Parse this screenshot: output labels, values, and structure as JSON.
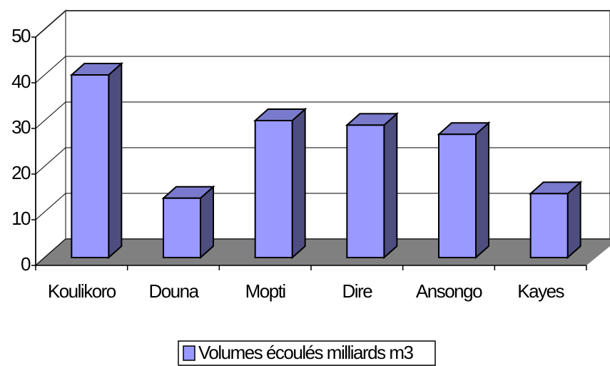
{
  "chart_data": {
    "type": "bar3d",
    "categories": [
      "Koulikoro",
      "Douna",
      "Mopti",
      "Dire",
      "Ansongo",
      "Kayes"
    ],
    "series": [
      {
        "name": "Volumes écoulés milliards m3",
        "color": "#9999ff",
        "values": [
          40,
          13,
          30,
          29,
          27,
          14
        ]
      }
    ],
    "ylim": [
      0,
      50
    ],
    "yticks": [
      0,
      10,
      20,
      30,
      40,
      50
    ],
    "grid": true,
    "legend": "bottom"
  }
}
